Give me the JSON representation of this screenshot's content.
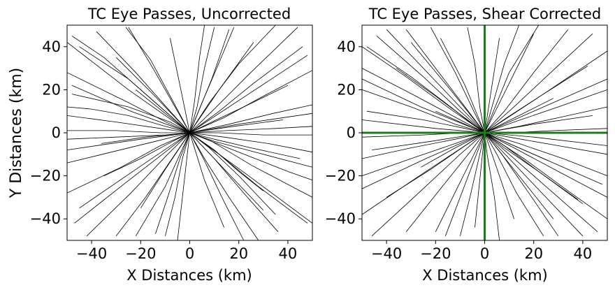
{
  "figure": {
    "shared_ylabel": "Y Distances (km)"
  },
  "chart_data": [
    {
      "type": "line",
      "title": "TC Eye Passes, Uncorrected",
      "xlabel": "X Distances (km)",
      "ylabel": "Y Distances (km)",
      "xlim": [
        -50,
        50
      ],
      "ylim": [
        -50,
        50
      ],
      "xticks": [
        -40,
        -20,
        0,
        20,
        40
      ],
      "yticks": [
        -40,
        -20,
        0,
        20,
        40
      ],
      "xtick_labels": [
        "−40",
        "−20",
        "0",
        "20",
        "40"
      ],
      "ytick_labels": [
        "−40",
        "−20",
        "0",
        "20",
        "40"
      ],
      "grid": false,
      "line_color": "#000000",
      "series": [
        {
          "x": [
            -48,
            -25,
            -8,
            0,
            10,
            30,
            50
          ],
          "y": [
            18,
            12,
            5,
            0,
            -4,
            -10,
            -16
          ]
        },
        {
          "x": [
            -50,
            -30,
            -10,
            0,
            15,
            35,
            50
          ],
          "y": [
            -3,
            -2,
            -1,
            0,
            1,
            2,
            3
          ]
        },
        {
          "x": [
            -30,
            -18,
            -6,
            0,
            8,
            20,
            35
          ],
          "y": [
            -48,
            -30,
            -10,
            0,
            14,
            32,
            50
          ]
        },
        {
          "x": [
            -45,
            -25,
            -10,
            0,
            12,
            28,
            48
          ],
          "y": [
            40,
            25,
            10,
            0,
            -10,
            -25,
            -42
          ]
        },
        {
          "x": [
            -5,
            -3,
            -1,
            0,
            2,
            4,
            6
          ],
          "y": [
            -50,
            -30,
            -10,
            0,
            15,
            35,
            50
          ]
        },
        {
          "x": [
            -50,
            -28,
            -12,
            0,
            14,
            30,
            50
          ],
          "y": [
            -28,
            -16,
            -6,
            0,
            7,
            17,
            29
          ]
        },
        {
          "x": [
            -38,
            -22,
            -8,
            0,
            10,
            22,
            36
          ],
          "y": [
            47,
            28,
            10,
            0,
            -12,
            -28,
            -46
          ]
        },
        {
          "x": [
            -50,
            -30,
            -12,
            0,
            14,
            32,
            50
          ],
          "y": [
            8,
            5,
            2,
            0,
            -2,
            -5,
            -9
          ]
        },
        {
          "x": [
            -14,
            -9,
            -4,
            0,
            5,
            11,
            18
          ],
          "y": [
            -47,
            -30,
            -12,
            0,
            14,
            30,
            49
          ]
        },
        {
          "x": [
            -47,
            -27,
            -10,
            0,
            12,
            26,
            46
          ],
          "y": [
            -42,
            -24,
            -9,
            0,
            10,
            23,
            40
          ]
        },
        {
          "x": [
            -50,
            -25,
            -8,
            0,
            9,
            25,
            50
          ],
          "y": [
            28,
            14,
            4,
            0,
            -4,
            -15,
            -30
          ]
        },
        {
          "x": [
            -25,
            -15,
            -5,
            0,
            6,
            16,
            28
          ],
          "y": [
            49,
            30,
            10,
            0,
            -12,
            -30,
            -50
          ]
        },
        {
          "x": [
            -50,
            -32,
            -14,
            0,
            16,
            34,
            50
          ],
          "y": [
            -14,
            -9,
            -4,
            0,
            4,
            9,
            13
          ]
        },
        {
          "x": [
            -42,
            -24,
            -9,
            0,
            10,
            24,
            44
          ],
          "y": [
            -48,
            -28,
            -10,
            0,
            11,
            27,
            49
          ]
        },
        {
          "x": [
            22,
            14,
            6,
            0,
            -7,
            -16,
            -26
          ],
          "y": [
            -50,
            -32,
            -13,
            0,
            15,
            34,
            49
          ]
        },
        {
          "x": [
            -50,
            -30,
            -12,
            0,
            12,
            30,
            50
          ],
          "y": [
            1,
            1,
            0,
            0,
            0,
            -1,
            -1
          ]
        },
        {
          "x": [
            -35,
            -20,
            -7,
            0,
            9,
            22,
            40
          ],
          "y": [
            -20,
            -12,
            -4,
            0,
            5,
            12,
            22
          ]
        },
        {
          "x": [
            -48,
            -35,
            -20,
            -8,
            0,
            8,
            20,
            35
          ],
          "y": [
            45,
            35,
            20,
            8,
            0,
            -7,
            -20,
            -38
          ]
        },
        {
          "x": [
            10,
            6,
            3,
            0,
            -3,
            -6,
            -10
          ],
          "y": [
            49,
            30,
            12,
            0,
            -12,
            -30,
            -48
          ]
        },
        {
          "x": [
            -50,
            -20,
            0,
            20,
            50
          ],
          "y": [
            -8,
            -3,
            0,
            4,
            9
          ]
        },
        {
          "x": [
            -30,
            -15,
            0,
            15,
            30
          ],
          "y": [
            35,
            18,
            0,
            -18,
            -36
          ]
        },
        {
          "x": [
            -20,
            -10,
            0,
            12,
            26
          ],
          "y": [
            -35,
            -17,
            0,
            20,
            42
          ]
        },
        {
          "x": [
            -50,
            -40,
            -25,
            -10,
            0,
            10,
            25,
            45
          ],
          "y": [
            12,
            11,
            8,
            3,
            0,
            -3,
            -7,
            -12
          ]
        },
        {
          "x": [
            -45,
            -22,
            0,
            24,
            48
          ],
          "y": [
            -35,
            -17,
            0,
            18,
            36
          ]
        },
        {
          "x": [
            16,
            9,
            0,
            -10,
            -22
          ],
          "y": [
            48,
            25,
            0,
            -25,
            -48
          ]
        },
        {
          "x": [
            -48,
            -24,
            0,
            20,
            40,
            50
          ],
          "y": [
            22,
            10,
            0,
            -9,
            -18,
            -22
          ]
        },
        {
          "x": [
            -8,
            -4,
            0,
            6,
            14
          ],
          "y": [
            44,
            22,
            0,
            -22,
            -44
          ]
        },
        {
          "x": [
            -36,
            -18,
            0,
            18,
            38
          ],
          "y": [
            -5,
            -2,
            0,
            3,
            6
          ]
        },
        {
          "x": [
            -50,
            -25,
            0,
            24,
            50
          ],
          "y": [
            42,
            20,
            0,
            -20,
            -42
          ]
        },
        {
          "x": [
            -22,
            -10,
            0,
            10,
            20,
            30
          ],
          "y": [
            20,
            9,
            0,
            -8,
            -18,
            -27
          ]
        }
      ]
    },
    {
      "type": "line",
      "title": "TC Eye Passes, Shear Corrected",
      "xlabel": "X Distances (km)",
      "xlim": [
        -50,
        50
      ],
      "ylim": [
        -50,
        50
      ],
      "xticks": [
        -40,
        -20,
        0,
        20,
        40
      ],
      "yticks": [
        -40,
        -20,
        0,
        20,
        40
      ],
      "xtick_labels": [
        "−40",
        "−20",
        "0",
        "20",
        "40"
      ],
      "ytick_labels": [
        "−40",
        "−20",
        "0",
        "20",
        "40"
      ],
      "grid": false,
      "line_color": "#000000",
      "reference_lines": {
        "x": 0,
        "y": 0,
        "color": "#1a7f1a"
      },
      "series": [
        {
          "x": [
            -48,
            -25,
            -8,
            0,
            10,
            30,
            50
          ],
          "y": [
            10,
            6,
            2,
            0,
            -2,
            -6,
            -10
          ]
        },
        {
          "x": [
            -44,
            -25,
            -10,
            0,
            10,
            28,
            46
          ],
          "y": [
            45,
            26,
            10,
            0,
            -10,
            -28,
            -46
          ]
        },
        {
          "x": [
            -10,
            -6,
            -2,
            0,
            3,
            8,
            14
          ],
          "y": [
            -48,
            -30,
            -10,
            0,
            12,
            32,
            50
          ]
        },
        {
          "x": [
            -50,
            -30,
            -12,
            0,
            12,
            30,
            50
          ],
          "y": [
            -20,
            -12,
            -5,
            0,
            5,
            12,
            20
          ]
        },
        {
          "x": [
            -32,
            -18,
            -6,
            0,
            8,
            20,
            34
          ],
          "y": [
            -46,
            -26,
            -9,
            0,
            10,
            28,
            48
          ]
        },
        {
          "x": [
            -50,
            -28,
            -10,
            0,
            12,
            30,
            50
          ],
          "y": [
            30,
            17,
            6,
            0,
            -7,
            -18,
            -30
          ]
        },
        {
          "x": [
            30,
            18,
            7,
            0,
            -8,
            -20,
            -32
          ],
          "y": [
            -48,
            -28,
            -10,
            0,
            12,
            30,
            48
          ]
        },
        {
          "x": [
            -50,
            -25,
            -8,
            0,
            10,
            28,
            50
          ],
          "y": [
            -2,
            -1,
            0,
            0,
            0,
            1,
            2
          ]
        },
        {
          "x": [
            -40,
            -22,
            -8,
            0,
            9,
            24,
            42
          ],
          "y": [
            -30,
            -17,
            -6,
            0,
            7,
            18,
            31
          ]
        },
        {
          "x": [
            -22,
            -12,
            -4,
            0,
            5,
            13,
            24
          ],
          "y": [
            49,
            28,
            9,
            0,
            -10,
            -28,
            -48
          ]
        },
        {
          "x": [
            -50,
            -30,
            -12,
            0,
            14,
            32,
            50
          ],
          "y": [
            20,
            12,
            4,
            0,
            -5,
            -12,
            -20
          ]
        },
        {
          "x": [
            -46,
            -26,
            -10,
            0,
            11,
            26,
            44
          ],
          "y": [
            -48,
            -27,
            -10,
            0,
            11,
            27,
            46
          ]
        },
        {
          "x": [
            6,
            4,
            1,
            0,
            -2,
            -4,
            -7
          ],
          "y": [
            -50,
            -30,
            -10,
            0,
            12,
            32,
            49
          ]
        },
        {
          "x": [
            -50,
            -32,
            -14,
            0,
            16,
            34,
            50
          ],
          "y": [
            40,
            26,
            11,
            0,
            -12,
            -27,
            -40
          ]
        },
        {
          "x": [
            -36,
            -20,
            -7,
            0,
            8,
            22,
            38
          ],
          "y": [
            30,
            17,
            6,
            0,
            -7,
            -18,
            -31
          ]
        },
        {
          "x": [
            -50,
            -30,
            -12,
            0,
            14,
            34,
            50
          ],
          "y": [
            -12,
            -7,
            -3,
            0,
            3,
            8,
            12
          ]
        },
        {
          "x": [
            -48,
            -30,
            -15,
            -5,
            0,
            8,
            22,
            40
          ],
          "y": [
            40,
            26,
            13,
            4,
            0,
            -6,
            -18,
            -33
          ]
        },
        {
          "x": [
            -16,
            -8,
            0,
            10,
            22
          ],
          "y": [
            -48,
            -24,
            0,
            28,
            50
          ]
        },
        {
          "x": [
            -50,
            -24,
            0,
            24,
            50
          ],
          "y": [
            -38,
            -18,
            0,
            18,
            38
          ]
        },
        {
          "x": [
            20,
            10,
            0,
            -10,
            -20
          ],
          "y": [
            46,
            23,
            0,
            -23,
            -46
          ]
        },
        {
          "x": [
            -50,
            -20,
            0,
            20,
            50
          ],
          "y": [
            6,
            2,
            0,
            -2,
            -6
          ]
        },
        {
          "x": [
            -26,
            -12,
            0,
            14,
            28
          ],
          "y": [
            -16,
            -7,
            0,
            8,
            16
          ]
        },
        {
          "x": [
            -40,
            -20,
            0,
            20,
            40
          ],
          "y": [
            48,
            24,
            0,
            -24,
            -48
          ]
        },
        {
          "x": [
            -50,
            -26,
            0,
            24,
            48
          ],
          "y": [
            25,
            12,
            0,
            -12,
            -24
          ]
        },
        {
          "x": [
            -30,
            -14,
            0,
            14,
            28
          ],
          "y": [
            42,
            20,
            0,
            -20,
            -40
          ]
        },
        {
          "x": [
            -4,
            -2,
            0,
            3,
            6
          ],
          "y": [
            -44,
            -22,
            0,
            22,
            44
          ]
        },
        {
          "x": [
            -50,
            -24,
            0,
            22,
            50
          ],
          "y": [
            -26,
            -12,
            0,
            11,
            25
          ]
        },
        {
          "x": [
            -20,
            -10,
            0,
            12,
            26
          ],
          "y": [
            10,
            5,
            0,
            -6,
            -13
          ]
        },
        {
          "x": [
            -46,
            -22,
            0,
            20,
            44
          ],
          "y": [
            -8,
            -4,
            0,
            4,
            8
          ]
        },
        {
          "x": [
            12,
            6,
            0,
            -8,
            -18
          ],
          "y": [
            -40,
            -20,
            0,
            22,
            44
          ]
        }
      ]
    }
  ]
}
